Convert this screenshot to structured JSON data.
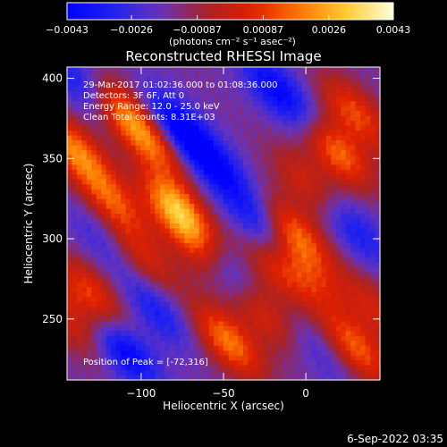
{
  "chart_data": {
    "type": "heatmap",
    "title": "Reconstructed RHESSI Image",
    "xlabel": "Heliocentric X (arcsec)",
    "ylabel": "Heliocentric Y (arcsec)",
    "xlim": [
      -145,
      45
    ],
    "ylim": [
      212,
      407
    ],
    "x_ticks": [
      -100,
      -50,
      0
    ],
    "x_tick_labels": [
      "−100",
      "−50",
      "0"
    ],
    "y_ticks": [
      250,
      300,
      350,
      400
    ],
    "y_tick_labels": [
      "250",
      "300",
      "350",
      "400"
    ],
    "colorbar": {
      "range": [
        -0.0043,
        0.0043
      ],
      "ticks": [
        -0.0043,
        -0.0026,
        -0.00087,
        0.00087,
        0.0026,
        0.0043
      ],
      "tick_labels": [
        "−0.0043",
        "−0.0026",
        "−0.00087",
        "0.00087",
        "0.0026",
        "0.0043"
      ],
      "units_label": "(photons cm⁻² s⁻¹ asec⁻²)",
      "colors": [
        "#0000ff",
        "#2222ee",
        "#6633bb",
        "#aa2222",
        "#e02000",
        "#ff7700",
        "#ffcc33",
        "#ffffdd"
      ]
    },
    "annotations": [
      "29-Mar-2017 01:02:36.000 to 01:08:36.000",
      "Detectors: 3F 6F, Att 0",
      "Energy Range: 12.0 - 25.0 keV",
      "Clean     Total counts: 8.31E+03"
    ],
    "peak_label": "Position of Peak = [-72,316]",
    "peak_position": [
      -72,
      316
    ],
    "bright_sources": [
      {
        "x": -140,
        "y": 355,
        "amp": 0.0034
      },
      {
        "x": -117,
        "y": 323,
        "amp": 0.0026
      },
      {
        "x": -97,
        "y": 287,
        "amp": 0.0018
      },
      {
        "x": -78,
        "y": 318,
        "amp": 0.0043
      },
      {
        "x": -62,
        "y": 290,
        "amp": 0.0028
      },
      {
        "x": -110,
        "y": 378,
        "amp": 0.003
      },
      {
        "x": -92,
        "y": 358,
        "amp": 0.0024
      },
      {
        "x": -130,
        "y": 265,
        "amp": 0.0026
      },
      {
        "x": -142,
        "y": 248,
        "amp": 0.0018
      },
      {
        "x": -47,
        "y": 236,
        "amp": 0.0034
      },
      {
        "x": -28,
        "y": 255,
        "amp": 0.0022
      },
      {
        "x": -18,
        "y": 280,
        "amp": 0.0018
      },
      {
        "x": -6,
        "y": 302,
        "amp": 0.0033
      },
      {
        "x": 2,
        "y": 275,
        "amp": 0.0016
      },
      {
        "x": 18,
        "y": 355,
        "amp": 0.0035
      },
      {
        "x": 30,
        "y": 378,
        "amp": 0.0027
      },
      {
        "x": 0,
        "y": 335,
        "amp": 0.0018
      },
      {
        "x": 30,
        "y": 232,
        "amp": 0.003
      },
      {
        "x": 40,
        "y": 258,
        "amp": 0.0018
      }
    ],
    "negative_sources": [
      {
        "x": -78,
        "y": 370,
        "amp": -0.003
      },
      {
        "x": -55,
        "y": 345,
        "amp": -0.0024
      },
      {
        "x": -50,
        "y": 280,
        "amp": -0.0028
      },
      {
        "x": -28,
        "y": 310,
        "amp": -0.002
      },
      {
        "x": -110,
        "y": 230,
        "amp": -0.0028
      },
      {
        "x": -90,
        "y": 255,
        "amp": -0.0018
      },
      {
        "x": -125,
        "y": 300,
        "amp": -0.001
      },
      {
        "x": -20,
        "y": 395,
        "amp": -0.0022
      },
      {
        "x": 0,
        "y": 375,
        "amp": -0.0012
      },
      {
        "x": 30,
        "y": 305,
        "amp": -0.0018
      },
      {
        "x": 10,
        "y": 230,
        "amp": -0.001
      },
      {
        "x": -138,
        "y": 398,
        "amp": -0.0018
      }
    ]
  },
  "footer": {
    "date": "6-Sep-2022 03:35"
  }
}
